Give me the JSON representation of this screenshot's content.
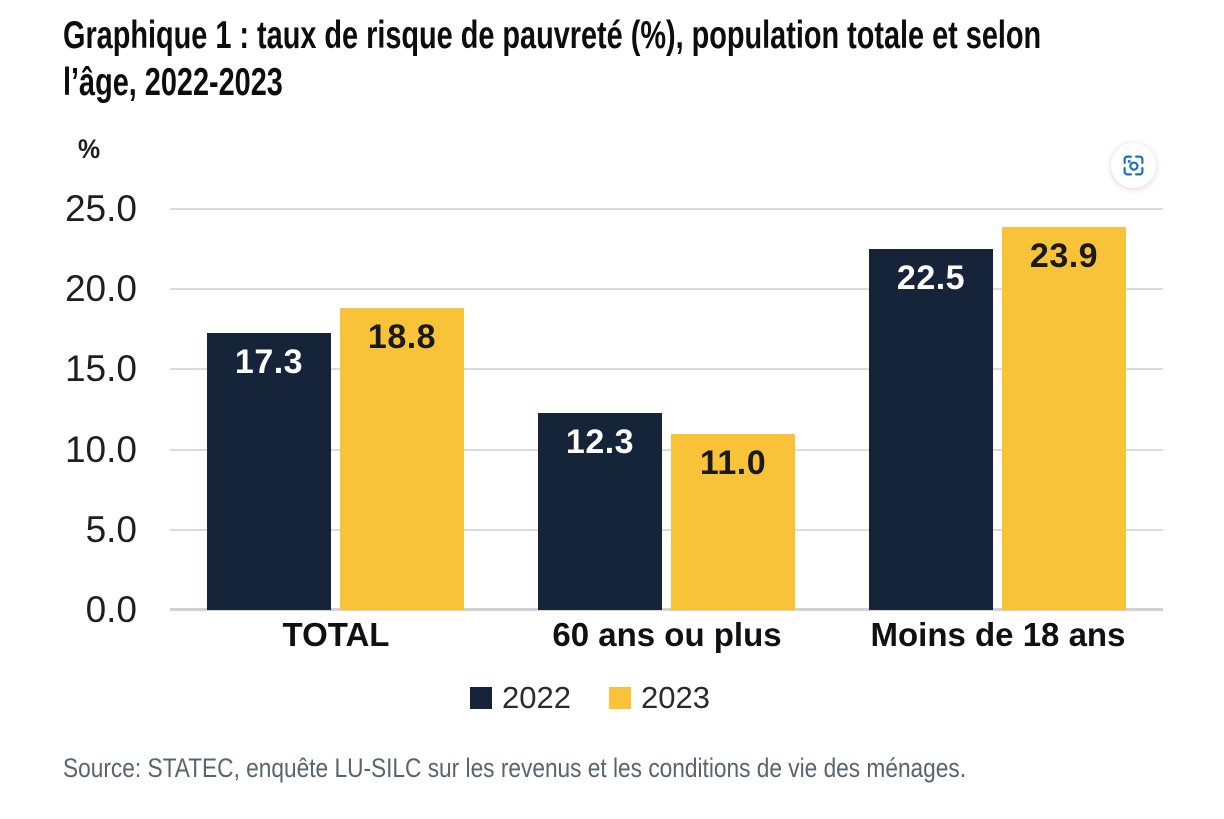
{
  "title": {
    "lines": [
      "Graphique 1 : taux de risque de pauvreté (%), population totale et selon",
      "l’âge, 2022-2023"
    ]
  },
  "chart_data": {
    "type": "bar",
    "title": "Graphique 1 : taux de risque de pauvreté (%), population totale et selon l’âge, 2022-2023",
    "unit_label": "%",
    "categories": [
      "TOTAL",
      "60 ans ou plus",
      "Moins de 18 ans"
    ],
    "series": [
      {
        "name": "2022",
        "color": "#16243A",
        "label_color": "#FFFFFF",
        "values": [
          17.3,
          12.3,
          22.5
        ]
      },
      {
        "name": "2023",
        "color": "#F8C339",
        "label_color": "#1A1A1A",
        "values": [
          18.8,
          11.0,
          23.9
        ]
      }
    ],
    "ylim": [
      0,
      25
    ],
    "ytick_step": 5,
    "ytick_labels": [
      "25.0",
      "20.0",
      "15.0",
      "10.0",
      "5.0",
      "0.0"
    ],
    "value_label_decimals": 1,
    "grid": true,
    "legend_position": "bottom-center"
  },
  "toolbar": {
    "screenshot_icon_color": "#1B6EC8"
  },
  "colors": {
    "gridline": "#DBDBDB",
    "axis_line": "#D2D2D2"
  },
  "source_note": "Source: STATEC, enquête LU-SILC sur les revenus et les conditions de vie des ménages."
}
